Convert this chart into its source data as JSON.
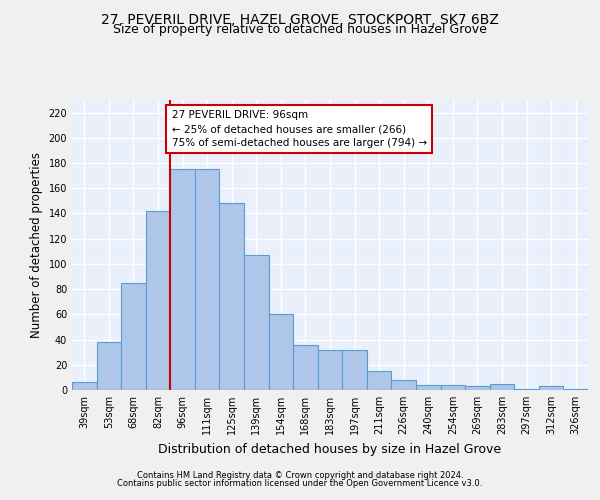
{
  "title": "27, PEVERIL DRIVE, HAZEL GROVE, STOCKPORT, SK7 6BZ",
  "subtitle": "Size of property relative to detached houses in Hazel Grove",
  "xlabel": "Distribution of detached houses by size in Hazel Grove",
  "ylabel": "Number of detached properties",
  "categories": [
    "39sqm",
    "53sqm",
    "68sqm",
    "82sqm",
    "96sqm",
    "111sqm",
    "125sqm",
    "139sqm",
    "154sqm",
    "168sqm",
    "183sqm",
    "197sqm",
    "211sqm",
    "226sqm",
    "240sqm",
    "254sqm",
    "269sqm",
    "283sqm",
    "297sqm",
    "312sqm",
    "326sqm"
  ],
  "values": [
    6,
    38,
    85,
    142,
    175,
    175,
    148,
    107,
    60,
    36,
    32,
    32,
    15,
    8,
    4,
    4,
    3,
    5,
    1,
    3,
    1
  ],
  "bar_color": "#aec6e8",
  "bar_edge_color": "#5b9bd5",
  "red_line_x": 4,
  "annotation_text": "27 PEVERIL DRIVE: 96sqm\n← 25% of detached houses are smaller (266)\n75% of semi-detached houses are larger (794) →",
  "annotation_box_color": "#ffffff",
  "annotation_box_edge": "#cc0000",
  "red_line_color": "#cc0000",
  "ylim": [
    0,
    230
  ],
  "yticks": [
    0,
    20,
    40,
    60,
    80,
    100,
    120,
    140,
    160,
    180,
    200,
    220
  ],
  "footer1": "Contains HM Land Registry data © Crown copyright and database right 2024.",
  "footer2": "Contains public sector information licensed under the Open Government Licence v3.0.",
  "bg_color": "#eaf0fb",
  "grid_color": "#ffffff",
  "fig_bg_color": "#f0f0f0",
  "title_fontsize": 10,
  "subtitle_fontsize": 9,
  "tick_fontsize": 7,
  "ylabel_fontsize": 8.5,
  "xlabel_fontsize": 9,
  "footer_fontsize": 6,
  "annotation_fontsize": 7.5
}
